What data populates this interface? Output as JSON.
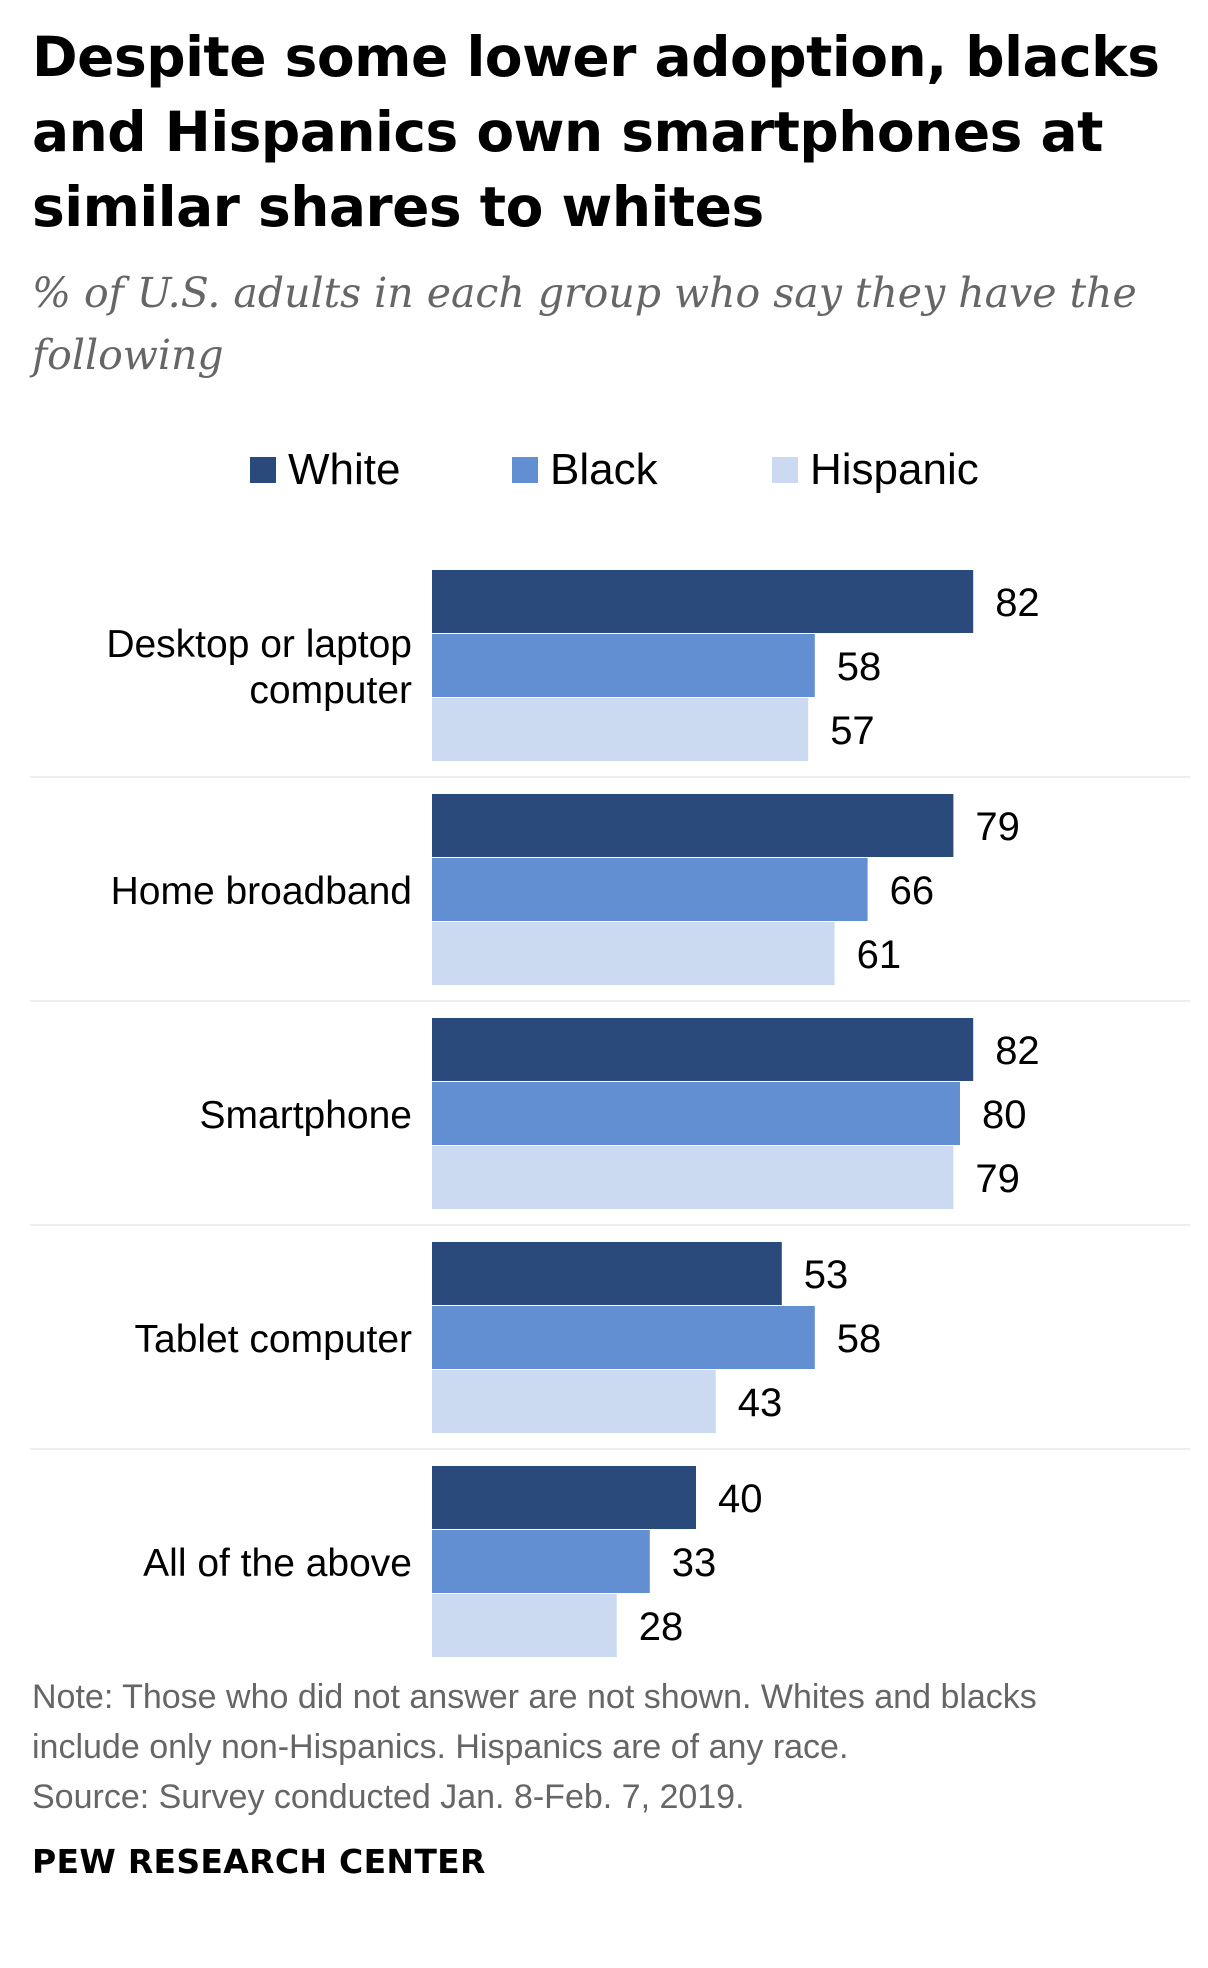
{
  "chart_data": {
    "type": "bar",
    "orientation": "horizontal",
    "title": "Despite some lower adoption, blacks and Hispanics own smartphones at similar shares to whites",
    "subtitle": "% of U.S. adults in each group who say they have the following",
    "categories": [
      "Desktop or laptop computer",
      "Home broadband",
      "Smartphone",
      "Tablet computer",
      "All of the above"
    ],
    "series": [
      {
        "name": "White",
        "color": "#2a4a7b",
        "values": [
          82,
          79,
          82,
          53,
          40
        ]
      },
      {
        "name": "Black",
        "color": "#618fd2",
        "values": [
          58,
          66,
          80,
          58,
          33
        ]
      },
      {
        "name": "Hispanic",
        "color": "#ccdaf1",
        "values": [
          57,
          61,
          79,
          43,
          28
        ]
      }
    ],
    "xlim": [
      0,
      100
    ],
    "grid": false,
    "legend_position": "top"
  },
  "note": {
    "line1": "Note: Those who did not answer are not shown. Whites and blacks",
    "line2": "include only non-Hispanics. Hispanics are of any race.",
    "line3": "Source: Survey conducted Jan. 8-Feb. 7, 2019."
  },
  "brand": "PEW RESEARCH CENTER",
  "colors": {
    "separator": "#eeeeee",
    "note_text": "#666666"
  }
}
